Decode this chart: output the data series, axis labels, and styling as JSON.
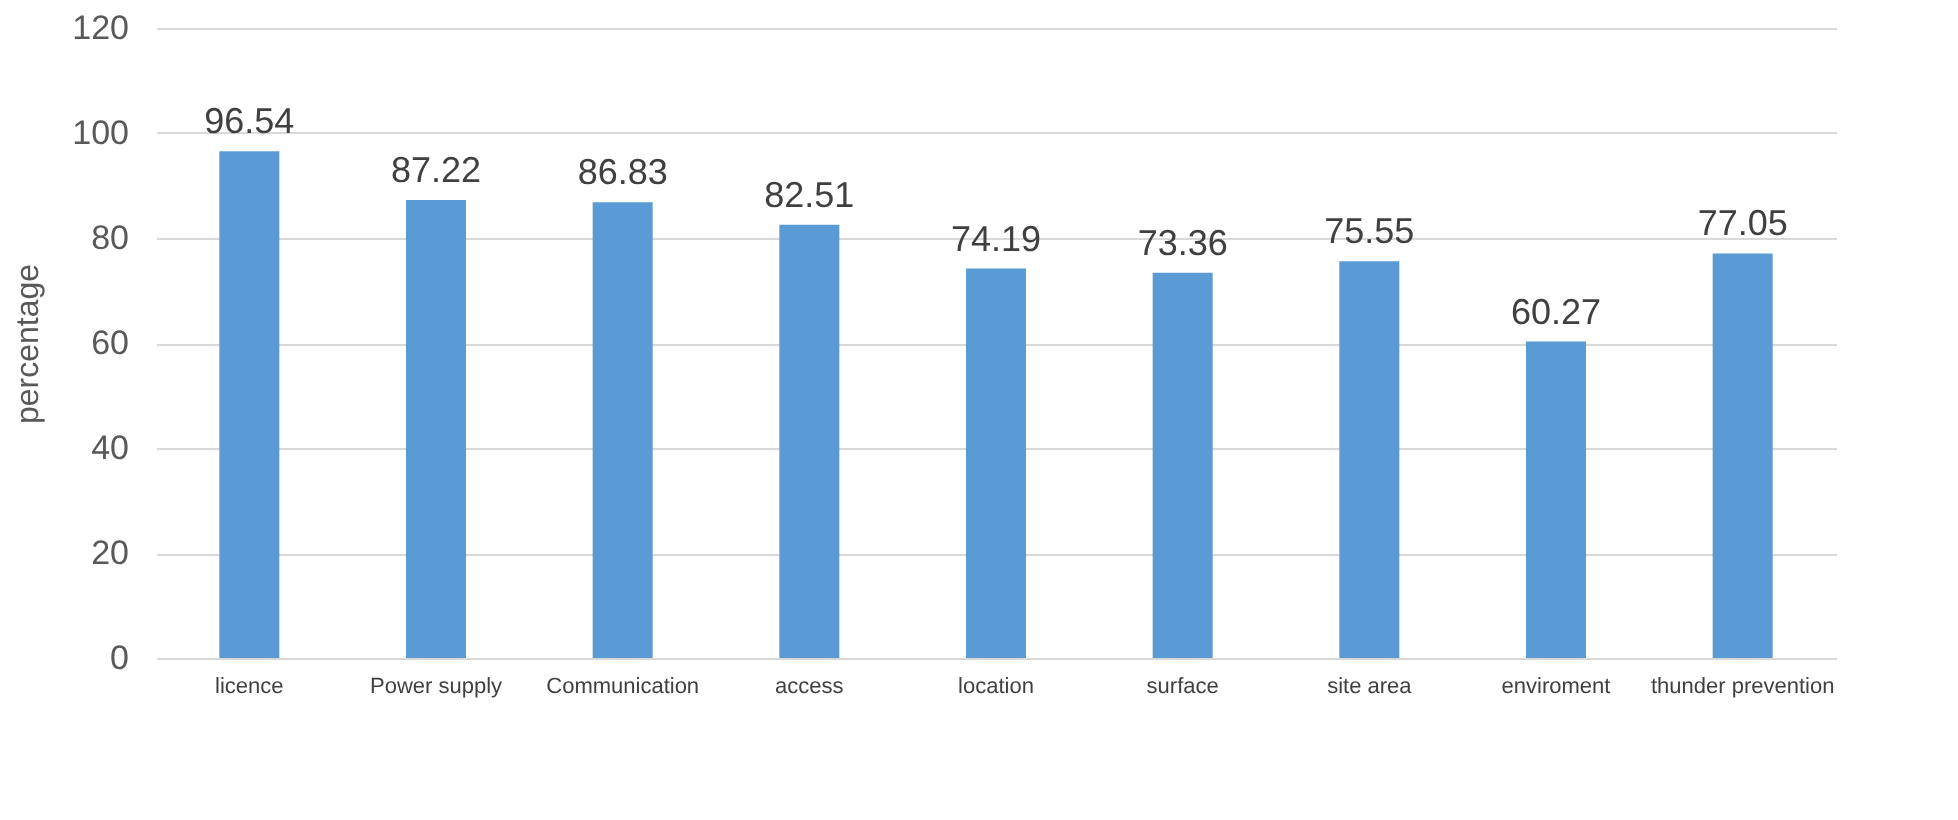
{
  "chart_data": {
    "type": "bar",
    "ylabel": "percentage",
    "categories": [
      "licence",
      "Power supply",
      "Communication",
      "access",
      "location",
      "surface",
      "site area",
      "enviroment",
      "thunder prevention"
    ],
    "values": [
      96.54,
      87.22,
      86.83,
      82.51,
      74.19,
      73.36,
      75.55,
      60.27,
      77.05
    ],
    "color": "#5b9bd5",
    "ylim": [
      0,
      120
    ],
    "yticks": [
      0,
      20,
      40,
      60,
      80,
      100,
      120
    ],
    "grid": "y",
    "data_labels": true
  }
}
